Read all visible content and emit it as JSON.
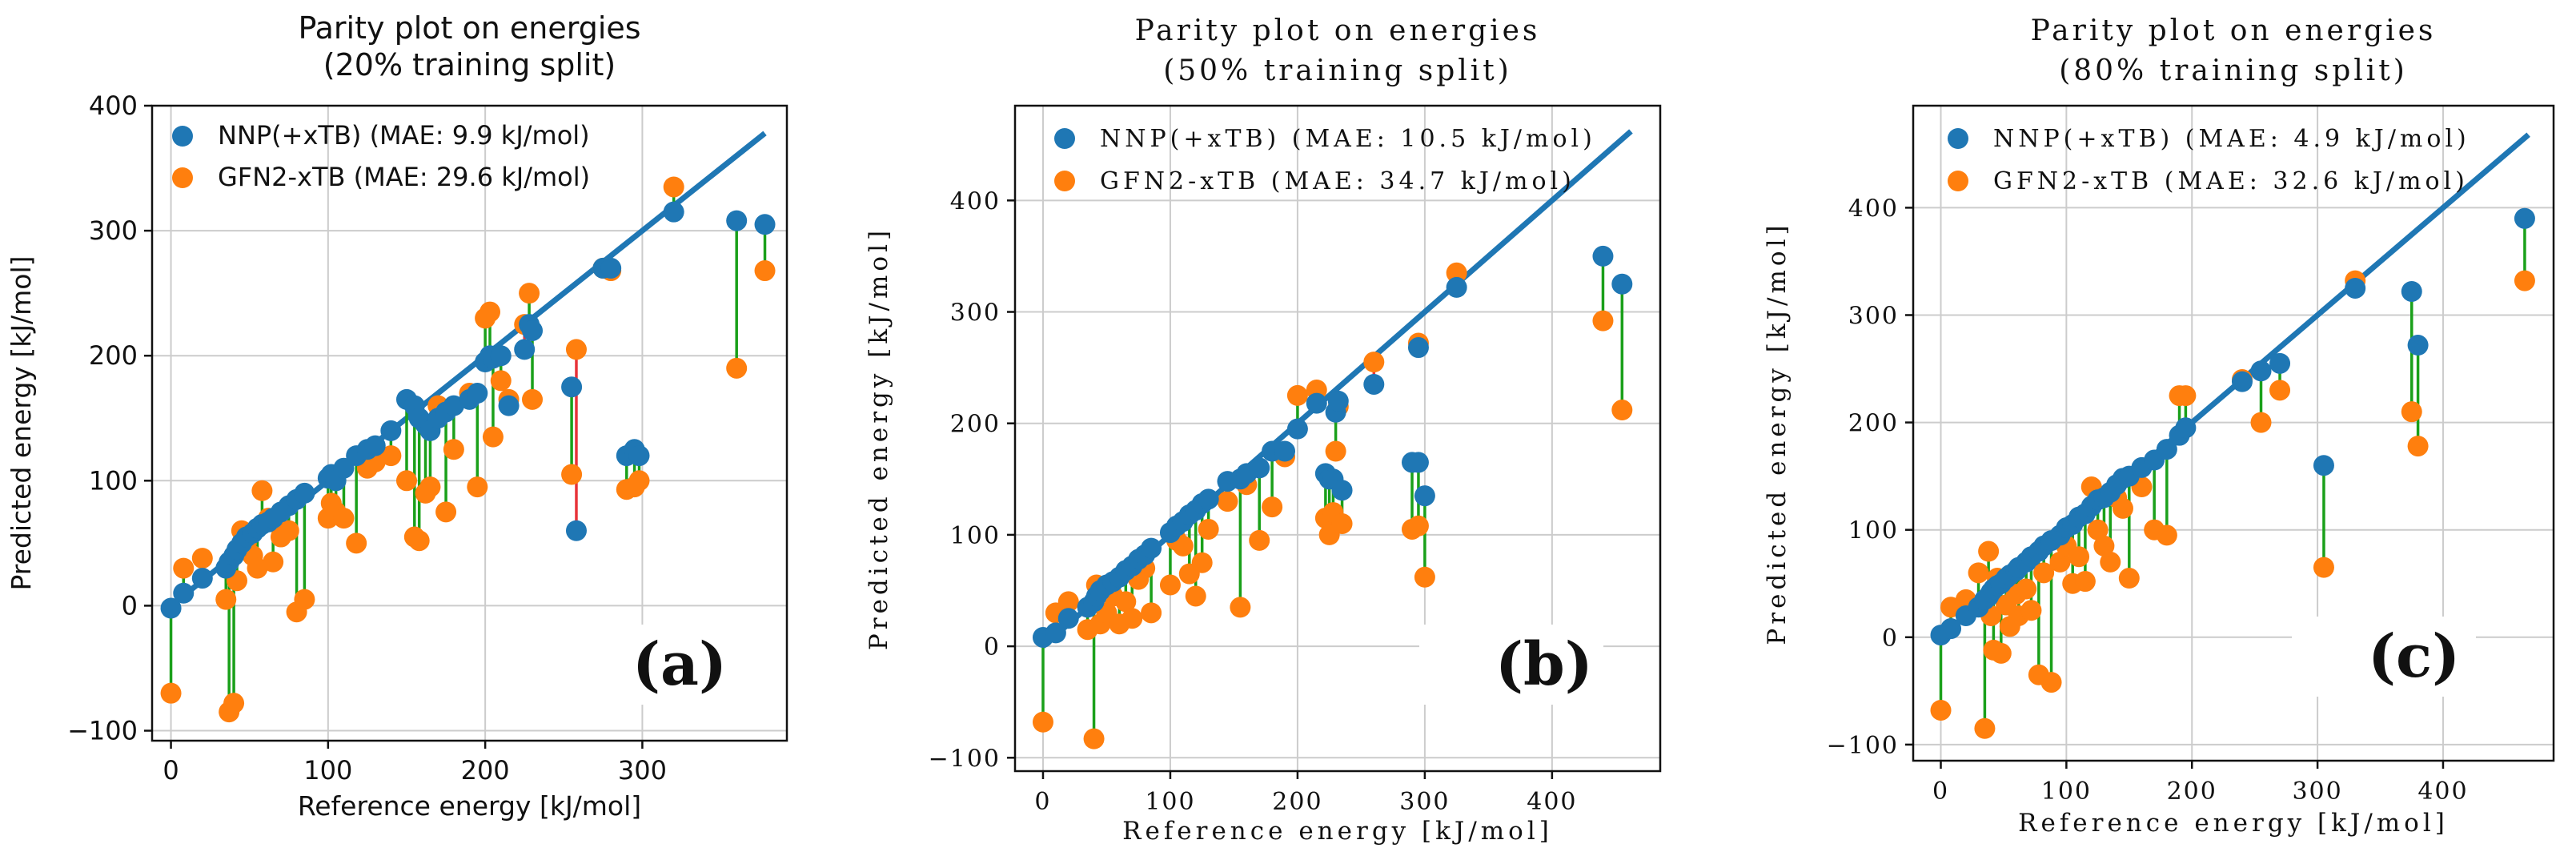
{
  "colors": {
    "nnp": "#1f77b4",
    "gfn": "#ff7f0e",
    "good": "#1aa01a",
    "bad": "#e8333a",
    "grid": "#cccccc"
  },
  "chart_data": [
    {
      "type": "scatter",
      "title": [
        "Parity plot on energies",
        "(20% training split)"
      ],
      "xlabel": "Reference energy [kJ/mol]",
      "ylabel": "Predicted energy [kJ/mol]",
      "xlim": [
        -12,
        392
      ],
      "ylim": [
        -108,
        400
      ],
      "xticks": [
        0,
        100,
        200,
        300
      ],
      "yticks": [
        -100,
        0,
        100,
        200,
        300,
        400
      ],
      "panel_label": "(a)",
      "diagonal": [
        0,
        378
      ],
      "series": [
        {
          "name": "NNP(+xTB) (MAE: 9.9 kJ/mol)",
          "role": "nnp"
        },
        {
          "name": "GFN2-xTB (MAE: 29.6 kJ/mol)",
          "role": "gfn"
        }
      ],
      "points": [
        [
          0,
          -2,
          -70
        ],
        [
          8,
          10,
          30
        ],
        [
          20,
          22,
          38
        ],
        [
          35,
          30,
          5
        ],
        [
          37,
          35,
          -85
        ],
        [
          40,
          40,
          -78
        ],
        [
          42,
          45,
          20
        ],
        [
          45,
          50,
          60
        ],
        [
          48,
          55,
          50
        ],
        [
          52,
          58,
          40
        ],
        [
          55,
          62,
          30
        ],
        [
          58,
          65,
          92
        ],
        [
          62,
          67,
          70
        ],
        [
          65,
          70,
          35
        ],
        [
          70,
          75,
          55
        ],
        [
          75,
          80,
          60
        ],
        [
          80,
          85,
          -5
        ],
        [
          85,
          90,
          5
        ],
        [
          100,
          102,
          70
        ],
        [
          102,
          105,
          82
        ],
        [
          105,
          100,
          75
        ],
        [
          110,
          110,
          70
        ],
        [
          118,
          120,
          50
        ],
        [
          125,
          125,
          110
        ],
        [
          130,
          128,
          115
        ],
        [
          140,
          140,
          120
        ],
        [
          150,
          165,
          100
        ],
        [
          155,
          160,
          55
        ],
        [
          158,
          150,
          52
        ],
        [
          162,
          145,
          90
        ],
        [
          165,
          140,
          95
        ],
        [
          170,
          150,
          160
        ],
        [
          175,
          155,
          75
        ],
        [
          180,
          160,
          125
        ],
        [
          190,
          165,
          170
        ],
        [
          195,
          170,
          95
        ],
        [
          200,
          195,
          230
        ],
        [
          203,
          200,
          235
        ],
        [
          205,
          198,
          135
        ],
        [
          210,
          200,
          180
        ],
        [
          215,
          160,
          165
        ],
        [
          225,
          205,
          225
        ],
        [
          228,
          225,
          250
        ],
        [
          230,
          220,
          165
        ],
        [
          255,
          175,
          105
        ],
        [
          258,
          60,
          205
        ],
        [
          275,
          270,
          270
        ],
        [
          280,
          270,
          268
        ],
        [
          290,
          120,
          93
        ],
        [
          295,
          125,
          95
        ],
        [
          298,
          120,
          100
        ],
        [
          320,
          315,
          335
        ],
        [
          360,
          308,
          190
        ],
        [
          378,
          305,
          268
        ]
      ]
    },
    {
      "type": "scatter",
      "title": [
        "Parity plot on energies",
        "(50% training split)"
      ],
      "xlabel": "Reference energy [kJ/mol]",
      "ylabel": "Predicted energy [kJ/mol]",
      "xlim": [
        -22,
        485
      ],
      "ylim": [
        -112,
        485
      ],
      "xticks": [
        0,
        100,
        200,
        300,
        400
      ],
      "yticks": [
        -100,
        0,
        100,
        200,
        300,
        400
      ],
      "panel_label": "(b)",
      "diagonal": [
        0,
        462
      ],
      "series": [
        {
          "name": "NNP(+xTB) (MAE: 10.5 kJ/mol)",
          "role": "nnp"
        },
        {
          "name": "GFN2-xTB (MAE: 34.7 kJ/mol)",
          "role": "gfn"
        }
      ],
      "points": [
        [
          0,
          8,
          -68
        ],
        [
          10,
          12,
          30
        ],
        [
          20,
          25,
          40
        ],
        [
          35,
          35,
          15
        ],
        [
          40,
          40,
          -83
        ],
        [
          42,
          45,
          55
        ],
        [
          45,
          50,
          20
        ],
        [
          50,
          55,
          30
        ],
        [
          55,
          58,
          45
        ],
        [
          60,
          62,
          20
        ],
        [
          65,
          68,
          40
        ],
        [
          70,
          72,
          25
        ],
        [
          75,
          78,
          60
        ],
        [
          80,
          82,
          70
        ],
        [
          85,
          88,
          30
        ],
        [
          100,
          102,
          55
        ],
        [
          105,
          108,
          95
        ],
        [
          110,
          112,
          90
        ],
        [
          115,
          118,
          65
        ],
        [
          120,
          122,
          45
        ],
        [
          125,
          128,
          75
        ],
        [
          130,
          132,
          105
        ],
        [
          145,
          148,
          130
        ],
        [
          155,
          150,
          35
        ],
        [
          160,
          155,
          145
        ],
        [
          170,
          160,
          95
        ],
        [
          180,
          175,
          125
        ],
        [
          190,
          175,
          170
        ],
        [
          200,
          195,
          225
        ],
        [
          215,
          218,
          230
        ],
        [
          222,
          155,
          115
        ],
        [
          225,
          150,
          100
        ],
        [
          228,
          150,
          120
        ],
        [
          230,
          210,
          175
        ],
        [
          232,
          220,
          215
        ],
        [
          235,
          140,
          110
        ],
        [
          260,
          235,
          255
        ],
        [
          290,
          165,
          105
        ],
        [
          295,
          165,
          108
        ],
        [
          295,
          268,
          272
        ],
        [
          300,
          135,
          62
        ],
        [
          325,
          322,
          335
        ],
        [
          440,
          350,
          292
        ],
        [
          455,
          325,
          212
        ]
      ]
    },
    {
      "type": "scatter",
      "title": [
        "Parity plot on energies",
        "(80% training split)"
      ],
      "xlabel": "Reference energy [kJ/mol]",
      "ylabel": "Predicted energy [kJ/mol]",
      "xlim": [
        -22,
        488
      ],
      "ylim": [
        -115,
        495
      ],
      "xticks": [
        0,
        100,
        200,
        300,
        400
      ],
      "yticks": [
        -100,
        0,
        100,
        200,
        300,
        400
      ],
      "panel_label": "(c)",
      "diagonal": [
        0,
        468
      ],
      "series": [
        {
          "name": "NNP(+xTB) (MAE: 4.9 kJ/mol)",
          "role": "nnp"
        },
        {
          "name": "GFN2-xTB (MAE: 32.6 kJ/mol)",
          "role": "gfn"
        }
      ],
      "points": [
        [
          0,
          2,
          -68
        ],
        [
          8,
          8,
          28
        ],
        [
          20,
          20,
          35
        ],
        [
          30,
          28,
          60
        ],
        [
          35,
          35,
          -85
        ],
        [
          38,
          38,
          80
        ],
        [
          40,
          42,
          20
        ],
        [
          42,
          45,
          -12
        ],
        [
          45,
          48,
          55
        ],
        [
          48,
          50,
          -15
        ],
        [
          52,
          55,
          30
        ],
        [
          55,
          58,
          10
        ],
        [
          60,
          62,
          40
        ],
        [
          62,
          65,
          20
        ],
        [
          68,
          70,
          45
        ],
        [
          72,
          75,
          25
        ],
        [
          78,
          80,
          -35
        ],
        [
          82,
          85,
          60
        ],
        [
          88,
          90,
          -42
        ],
        [
          95,
          95,
          70
        ],
        [
          100,
          102,
          85
        ],
        [
          105,
          105,
          50
        ],
        [
          110,
          112,
          75
        ],
        [
          115,
          115,
          52
        ],
        [
          120,
          122,
          140
        ],
        [
          125,
          128,
          100
        ],
        [
          130,
          130,
          85
        ],
        [
          135,
          135,
          70
        ],
        [
          140,
          142,
          130
        ],
        [
          145,
          148,
          120
        ],
        [
          150,
          150,
          55
        ],
        [
          160,
          158,
          140
        ],
        [
          170,
          165,
          100
        ],
        [
          180,
          175,
          95
        ],
        [
          190,
          188,
          225
        ],
        [
          195,
          195,
          225
        ],
        [
          240,
          238,
          240
        ],
        [
          255,
          248,
          200
        ],
        [
          270,
          255,
          230
        ],
        [
          305,
          160,
          65
        ],
        [
          330,
          325,
          332
        ],
        [
          375,
          322,
          210
        ],
        [
          380,
          272,
          178
        ],
        [
          465,
          390,
          332
        ]
      ]
    }
  ]
}
